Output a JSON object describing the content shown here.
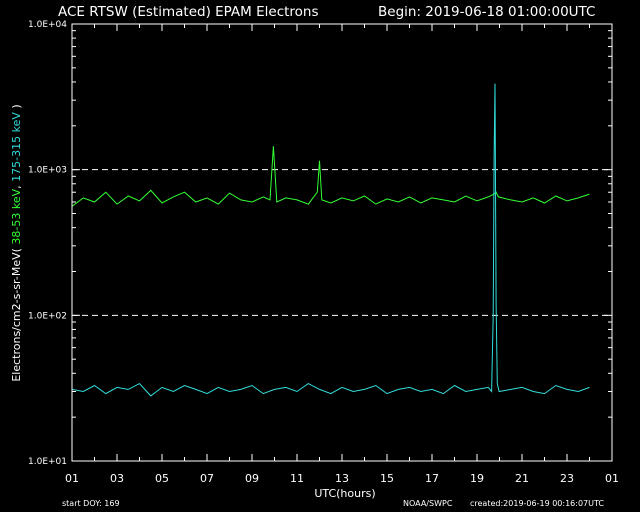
{
  "header": {
    "title": "ACE RTSW (Estimated) EPAM Electrons",
    "begin": "Begin: 2019-06-18 01:00:00UTC"
  },
  "footer": {
    "start_doy": "start DOY:  169",
    "agency": "NOAA/SWPC",
    "created": "created:2019-06-19 00:16:07UTC"
  },
  "colors": {
    "background": "#000000",
    "axes": "#ffffff",
    "low": "#33ff33",
    "high": "#33dddd"
  },
  "chart_data": {
    "type": "line",
    "title": "ACE RTSW (Estimated) EPAM Electrons",
    "xlabel": "UTC(hours)",
    "ylabel_parts": [
      "Electrons/cm2-s-sr-MeV",
      "( ",
      "38-53 keV",
      ",  ",
      "175-315 keV",
      " )"
    ],
    "yscale": "log",
    "ylim": [
      10,
      10000
    ],
    "xlim": [
      1,
      25
    ],
    "x_ticks": [
      "01",
      "03",
      "05",
      "07",
      "09",
      "11",
      "13",
      "15",
      "17",
      "19",
      "21",
      "23",
      "01"
    ],
    "y_ticks": [
      {
        "label": "1.0E+01",
        "value": 10
      },
      {
        "label": "1.0E+02",
        "value": 100
      },
      {
        "label": "1.0E+03",
        "value": 1000
      },
      {
        "label": "1.0E+04",
        "value": 10000
      }
    ],
    "reference_lines": [
      100,
      1000
    ],
    "series": [
      {
        "name": "38-53 keV",
        "color": "#33ff33",
        "x": [
          1.0,
          1.5,
          2.0,
          2.5,
          3.0,
          3.5,
          4.0,
          4.5,
          5.0,
          5.5,
          6.0,
          6.5,
          7.0,
          7.5,
          8.0,
          8.5,
          9.0,
          9.5,
          9.8,
          9.95,
          10.1,
          10.5,
          11.0,
          11.5,
          11.9,
          12.0,
          12.1,
          12.5,
          13.0,
          13.5,
          14.0,
          14.5,
          15.0,
          15.5,
          16.0,
          16.5,
          17.0,
          17.5,
          18.0,
          18.5,
          19.0,
          19.5,
          19.75,
          19.85,
          19.95,
          20.5,
          21.0,
          21.5,
          22.0,
          22.5,
          23.0,
          23.5,
          24.0
        ],
        "values": [
          560,
          640,
          600,
          700,
          580,
          660,
          610,
          720,
          590,
          650,
          700,
          600,
          640,
          580,
          690,
          620,
          600,
          650,
          620,
          1450,
          600,
          640,
          620,
          580,
          700,
          1150,
          620,
          590,
          640,
          610,
          660,
          580,
          630,
          600,
          650,
          590,
          640,
          620,
          600,
          660,
          610,
          650,
          680,
          700,
          650,
          620,
          600,
          640,
          590,
          660,
          610,
          640,
          680
        ]
      },
      {
        "name": "175-315 keV",
        "color": "#33dddd",
        "x": [
          1.0,
          1.5,
          2.0,
          2.5,
          3.0,
          3.5,
          4.0,
          4.5,
          5.0,
          5.5,
          6.0,
          6.5,
          7.0,
          7.5,
          8.0,
          8.5,
          9.0,
          9.5,
          10.0,
          10.5,
          11.0,
          11.5,
          12.0,
          12.5,
          13.0,
          13.5,
          14.0,
          14.5,
          15.0,
          15.5,
          16.0,
          16.5,
          17.0,
          17.5,
          18.0,
          18.5,
          19.0,
          19.5,
          19.65,
          19.72,
          19.76,
          19.8,
          19.85,
          19.9,
          19.98,
          20.5,
          21.0,
          21.5,
          22.0,
          22.5,
          23.0,
          23.5,
          24.0
        ],
        "values": [
          31,
          30,
          33,
          29,
          32,
          31,
          34,
          28,
          32,
          30,
          33,
          31,
          29,
          32,
          30,
          31,
          33,
          29,
          31,
          32,
          30,
          34,
          31,
          29,
          32,
          30,
          31,
          33,
          29,
          31,
          32,
          30,
          31,
          29,
          33,
          30,
          31,
          32,
          30,
          100,
          1200,
          3900,
          120,
          34,
          30,
          31,
          32,
          30,
          29,
          33,
          31,
          30,
          32
        ]
      }
    ]
  }
}
